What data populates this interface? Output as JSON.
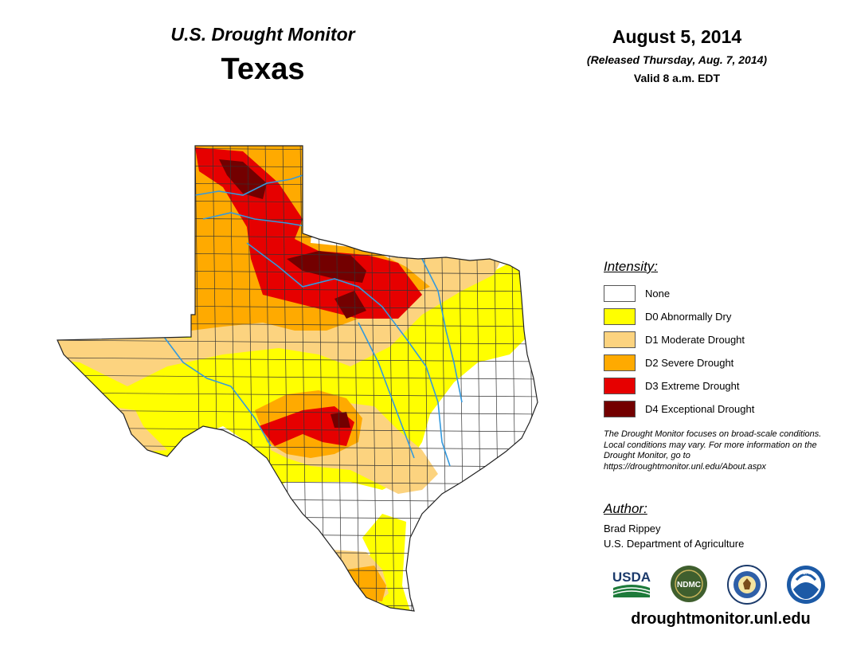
{
  "header": {
    "title": "U.S. Drought Monitor",
    "region": "Texas",
    "date": "August 5, 2014",
    "released": "(Released Thursday, Aug. 7, 2014)",
    "valid": "Valid 8 a.m. EDT"
  },
  "legend": {
    "title": "Intensity:",
    "items": [
      {
        "label": "None",
        "color": "#ffffff"
      },
      {
        "label": "D0 Abnormally Dry",
        "color": "#ffff00"
      },
      {
        "label": "D1 Moderate Drought",
        "color": "#fcd37f"
      },
      {
        "label": "D2 Severe Drought",
        "color": "#ffaa00"
      },
      {
        "label": "D3 Extreme Drought",
        "color": "#e60000"
      },
      {
        "label": "D4 Exceptional Drought",
        "color": "#730000"
      }
    ]
  },
  "note": "The Drought Monitor focuses on broad-scale conditions. Local conditions may vary. For more information on the Drought Monitor, go to https://droughtmonitor.unl.edu/About.aspx",
  "author": {
    "title": "Author:",
    "name": "Brad Rippey",
    "organization": "U.S. Department of Agriculture"
  },
  "logos": {
    "usda": "USDA",
    "ndmc": "NDMC",
    "noaa": "NOAA"
  },
  "website": "droughtmonitor.unl.edu",
  "colors": {
    "river": "#3399dd",
    "county_line": "#333333"
  }
}
